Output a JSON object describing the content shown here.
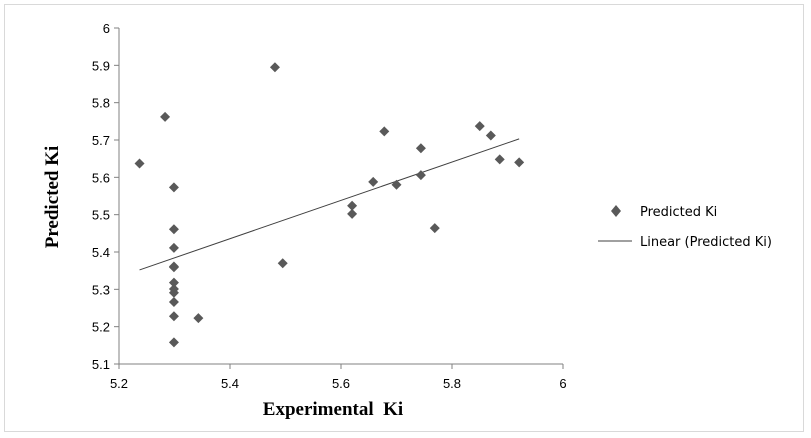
{
  "chart_data": {
    "type": "scatter",
    "title": "",
    "xlabel": "Experimental  Ki",
    "ylabel": "Predicted Ki",
    "xlim": [
      5.2,
      6
    ],
    "ylim": [
      5.1,
      6
    ],
    "x_ticks": [
      "5.2",
      "5.4",
      "5.6",
      "5.8",
      "6"
    ],
    "y_ticks": [
      "5.1",
      "5.2",
      "5.3",
      "5.4",
      "5.5",
      "5.6",
      "5.7",
      "5.8",
      "5.9",
      "6"
    ],
    "grid": false,
    "legend_position": "right",
    "series": [
      {
        "name": "Predicted Ki",
        "marker": "diamond",
        "color": "#595959",
        "points": [
          [
            5.237,
            5.637
          ],
          [
            5.283,
            5.762
          ],
          [
            5.299,
            5.573
          ],
          [
            5.299,
            5.461
          ],
          [
            5.299,
            5.411
          ],
          [
            5.299,
            5.361
          ],
          [
            5.299,
            5.359
          ],
          [
            5.299,
            5.318
          ],
          [
            5.299,
            5.301
          ],
          [
            5.299,
            5.291
          ],
          [
            5.299,
            5.266
          ],
          [
            5.299,
            5.228
          ],
          [
            5.299,
            5.158
          ],
          [
            5.343,
            5.223
          ],
          [
            5.481,
            5.895
          ],
          [
            5.495,
            5.37
          ],
          [
            5.62,
            5.524
          ],
          [
            5.62,
            5.502
          ],
          [
            5.658,
            5.588
          ],
          [
            5.678,
            5.723
          ],
          [
            5.7,
            5.58
          ],
          [
            5.744,
            5.678
          ],
          [
            5.744,
            5.606
          ],
          [
            5.769,
            5.464
          ],
          [
            5.85,
            5.737
          ],
          [
            5.87,
            5.712
          ],
          [
            5.886,
            5.648
          ],
          [
            5.921,
            5.64
          ]
        ]
      }
    ],
    "trendline": {
      "name": "Linear (Predicted Ki)",
      "type": "linear",
      "color": "#404040",
      "points": [
        [
          5.237,
          5.352
        ],
        [
          5.921,
          5.703
        ]
      ]
    }
  }
}
